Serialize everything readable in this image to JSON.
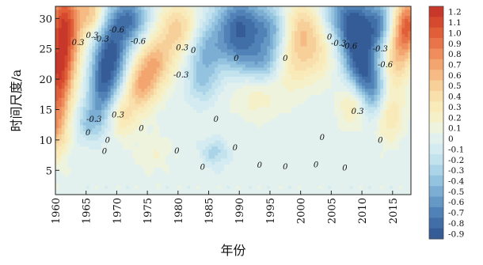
{
  "chart_data": {
    "type": "heatmap",
    "subtype": "filled-contour (wavelet coefficient map)",
    "title": "",
    "xlabel": "年份",
    "ylabel": "时间尺度/a",
    "xlim": [
      1960,
      2018
    ],
    "ylim": [
      1,
      32
    ],
    "x_ticks": [
      "1960",
      "1965",
      "1970",
      "1975",
      "1980",
      "1985",
      "1990",
      "1995",
      "2000",
      "2005",
      "2010",
      "2015"
    ],
    "y_ticks": [
      "5",
      "10",
      "15",
      "20",
      "25",
      "30"
    ],
    "colorbar": {
      "levels": [
        "1.2",
        "1.1",
        "1.0",
        "0.9",
        "0.8",
        "0.7",
        "0.6",
        "0.5",
        "0.4",
        "0.3",
        "0.2",
        "0.1",
        "0",
        "-0.1",
        "-0.2",
        "-0.3",
        "-0.4",
        "-0.5",
        "-0.6",
        "-0.7",
        "-0.8",
        "-0.9"
      ],
      "colors": [
        "#c8382a",
        "#d5492e",
        "#e05f38",
        "#e8754a",
        "#ef8d5d",
        "#f3a56f",
        "#f6bb84",
        "#f7cf98",
        "#f8dfac",
        "#f9eab9",
        "#f6f0c8",
        "#eef3dd",
        "#e3f1ee",
        "#d4ebf1",
        "#c2e2ed",
        "#abd4e8",
        "#93c3df",
        "#7caed4",
        "#6698c6",
        "#5182b7",
        "#416ea7",
        "#355c96"
      ]
    },
    "contour_labels": [
      {
        "text": "0.3",
        "x": 1963.7,
        "y": 25.6
      },
      {
        "text": "0.3",
        "x": 1966,
        "y": 26.8
      },
      {
        "text": "-0.3",
        "x": 1967.5,
        "y": 26.2
      },
      {
        "text": "-0.6",
        "x": 1970,
        "y": 27.7
      },
      {
        "text": "-0.6",
        "x": 1973.5,
        "y": 25.8
      },
      {
        "text": "0.3",
        "x": 1970.2,
        "y": 13.7
      },
      {
        "text": "-0.3",
        "x": 1966.3,
        "y": 13.0
      },
      {
        "text": "0",
        "x": 1965.3,
        "y": 10.8
      },
      {
        "text": "0",
        "x": 1968.5,
        "y": 9.5
      },
      {
        "text": "0",
        "x": 1968,
        "y": 7.7
      },
      {
        "text": "0",
        "x": 1974,
        "y": 11.5
      },
      {
        "text": "0.3",
        "x": 1980.7,
        "y": 24.8
      },
      {
        "text": "0",
        "x": 1982.5,
        "y": 24.3
      },
      {
        "text": "-0.3",
        "x": 1980.5,
        "y": 20.3
      },
      {
        "text": "0",
        "x": 1979.8,
        "y": 7.8
      },
      {
        "text": "0",
        "x": 1984,
        "y": 5.1
      },
      {
        "text": "0",
        "x": 1986.2,
        "y": 13.0
      },
      {
        "text": "0",
        "x": 1989.5,
        "y": 23.0
      },
      {
        "text": "0",
        "x": 1989.3,
        "y": 8.3
      },
      {
        "text": "0",
        "x": 1993.3,
        "y": 5.4
      },
      {
        "text": "0",
        "x": 1997.5,
        "y": 23.0
      },
      {
        "text": "0",
        "x": 1997.5,
        "y": 5.2
      },
      {
        "text": "0",
        "x": 2002.5,
        "y": 5.5
      },
      {
        "text": "0",
        "x": 2003.5,
        "y": 10.0
      },
      {
        "text": "0",
        "x": 2004.7,
        "y": 26.5
      },
      {
        "text": "-0.3",
        "x": 2006.2,
        "y": 25.5
      },
      {
        "text": "-0.6",
        "x": 2008,
        "y": 25.0
      },
      {
        "text": "0",
        "x": 2007.2,
        "y": 5.0
      },
      {
        "text": "0.3",
        "x": 2009.3,
        "y": 14.3
      },
      {
        "text": "-0.3",
        "x": 2013,
        "y": 24.6
      },
      {
        "text": "-0.6",
        "x": 2013.8,
        "y": 22.0
      },
      {
        "text": "0",
        "x": 2013,
        "y": 9.5
      }
    ],
    "features": [
      {
        "x": 1961.5,
        "y": 29,
        "v": 1.1,
        "sx": 2.0,
        "sy": 5.5
      },
      {
        "x": 1960.5,
        "y": 20,
        "v": 0.85,
        "sx": 1.6,
        "sy": 4.5
      },
      {
        "x": 1960,
        "y": 12,
        "v": 0.55,
        "sx": 1.4,
        "sy": 3.5
      },
      {
        "x": 1966,
        "y": 31,
        "v": 0.5,
        "sx": 1.4,
        "sy": 2.5
      },
      {
        "x": 1969,
        "y": 24,
        "v": -0.85,
        "sx": 2.0,
        "sy": 4.0
      },
      {
        "x": 1967.5,
        "y": 18,
        "v": -0.55,
        "sx": 1.6,
        "sy": 3.5
      },
      {
        "x": 1972,
        "y": 30,
        "v": -0.7,
        "sx": 2.2,
        "sy": 2.8
      },
      {
        "x": 1965.5,
        "y": 13,
        "v": -0.35,
        "sx": 1.6,
        "sy": 2.2
      },
      {
        "x": 1974,
        "y": 19,
        "v": 0.6,
        "sx": 1.8,
        "sy": 3.0
      },
      {
        "x": 1976.5,
        "y": 23,
        "v": 0.55,
        "sx": 2.0,
        "sy": 3.0
      },
      {
        "x": 1971,
        "y": 14,
        "v": 0.35,
        "sx": 1.6,
        "sy": 2.5
      },
      {
        "x": 1980,
        "y": 28.5,
        "v": 0.5,
        "sx": 2.2,
        "sy": 3.0
      },
      {
        "x": 1984.5,
        "y": 25,
        "v": -0.4,
        "sx": 2.0,
        "sy": 3.0
      },
      {
        "x": 1984,
        "y": 19.5,
        "v": -0.3,
        "sx": 1.8,
        "sy": 2.5
      },
      {
        "x": 1990,
        "y": 29,
        "v": -0.8,
        "sx": 2.8,
        "sy": 3.5
      },
      {
        "x": 1990,
        "y": 24,
        "v": -0.3,
        "sx": 2.5,
        "sy": 2.5
      },
      {
        "x": 1995.5,
        "y": 28,
        "v": -0.5,
        "sx": 2.2,
        "sy": 3.0
      },
      {
        "x": 1994,
        "y": 22.5,
        "v": -0.35,
        "sx": 2.0,
        "sy": 2.2
      },
      {
        "x": 1993,
        "y": 17,
        "v": 0.2,
        "sx": 3.0,
        "sy": 2.5
      },
      {
        "x": 2000,
        "y": 28,
        "v": 0.55,
        "sx": 2.5,
        "sy": 3.5
      },
      {
        "x": 1999,
        "y": 22,
        "v": 0.25,
        "sx": 2.5,
        "sy": 3.0
      },
      {
        "x": 2003.5,
        "y": 24,
        "v": 0.2,
        "sx": 2.0,
        "sy": 3.0
      },
      {
        "x": 2005.5,
        "y": 31,
        "v": -0.3,
        "sx": 1.8,
        "sy": 2.5
      },
      {
        "x": 2009,
        "y": 28.5,
        "v": -0.95,
        "sx": 2.2,
        "sy": 4.0
      },
      {
        "x": 2010,
        "y": 22,
        "v": -0.65,
        "sx": 1.8,
        "sy": 3.5
      },
      {
        "x": 2012,
        "y": 18,
        "v": -0.45,
        "sx": 1.6,
        "sy": 3.0
      },
      {
        "x": 2013,
        "y": 29,
        "v": -0.55,
        "sx": 1.4,
        "sy": 3.0
      },
      {
        "x": 2008.5,
        "y": 16,
        "v": 0.35,
        "sx": 1.6,
        "sy": 2.5
      },
      {
        "x": 2015.5,
        "y": 24,
        "v": 0.5,
        "sx": 1.6,
        "sy": 4.0
      },
      {
        "x": 2017.5,
        "y": 29,
        "v": 0.9,
        "sx": 1.4,
        "sy": 3.5
      },
      {
        "x": 2014.5,
        "y": 14,
        "v": 0.35,
        "sx": 1.6,
        "sy": 3.0
      },
      {
        "x": 1986,
        "y": 8,
        "v": -0.3,
        "sx": 1.5,
        "sy": 1.5
      },
      {
        "x": 1976,
        "y": 8,
        "v": 0.15,
        "sx": 2.0,
        "sy": 2.0
      }
    ]
  }
}
